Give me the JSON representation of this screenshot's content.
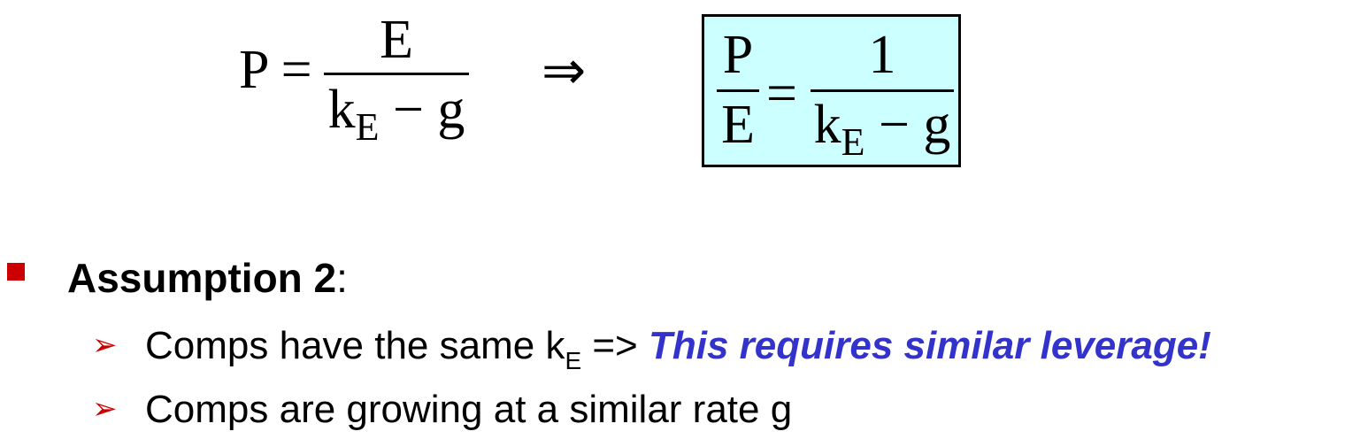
{
  "formula1": {
    "lhs": "P =",
    "numerator": "E",
    "den_k": "k",
    "den_sub": "E",
    "den_rest": " − g"
  },
  "arrow": "⇒",
  "formula2": {
    "lhs_num": "P",
    "lhs_den": "E",
    "equals": "=",
    "rhs_num": "1",
    "den_k": "k",
    "den_sub": "E",
    "den_rest": " − g",
    "box_color": "#ccffff"
  },
  "assumption": {
    "label": "Assumption 2",
    "colon": ":"
  },
  "items": [
    {
      "text_before": "Comps have the same k",
      "sub": "E",
      "text_after": " => ",
      "emphasis": "This requires similar leverage!"
    },
    {
      "text": "Comps are growing at a similar rate g"
    }
  ],
  "colors": {
    "bullet": "#cc0000",
    "emphasis": "#3333cc"
  }
}
